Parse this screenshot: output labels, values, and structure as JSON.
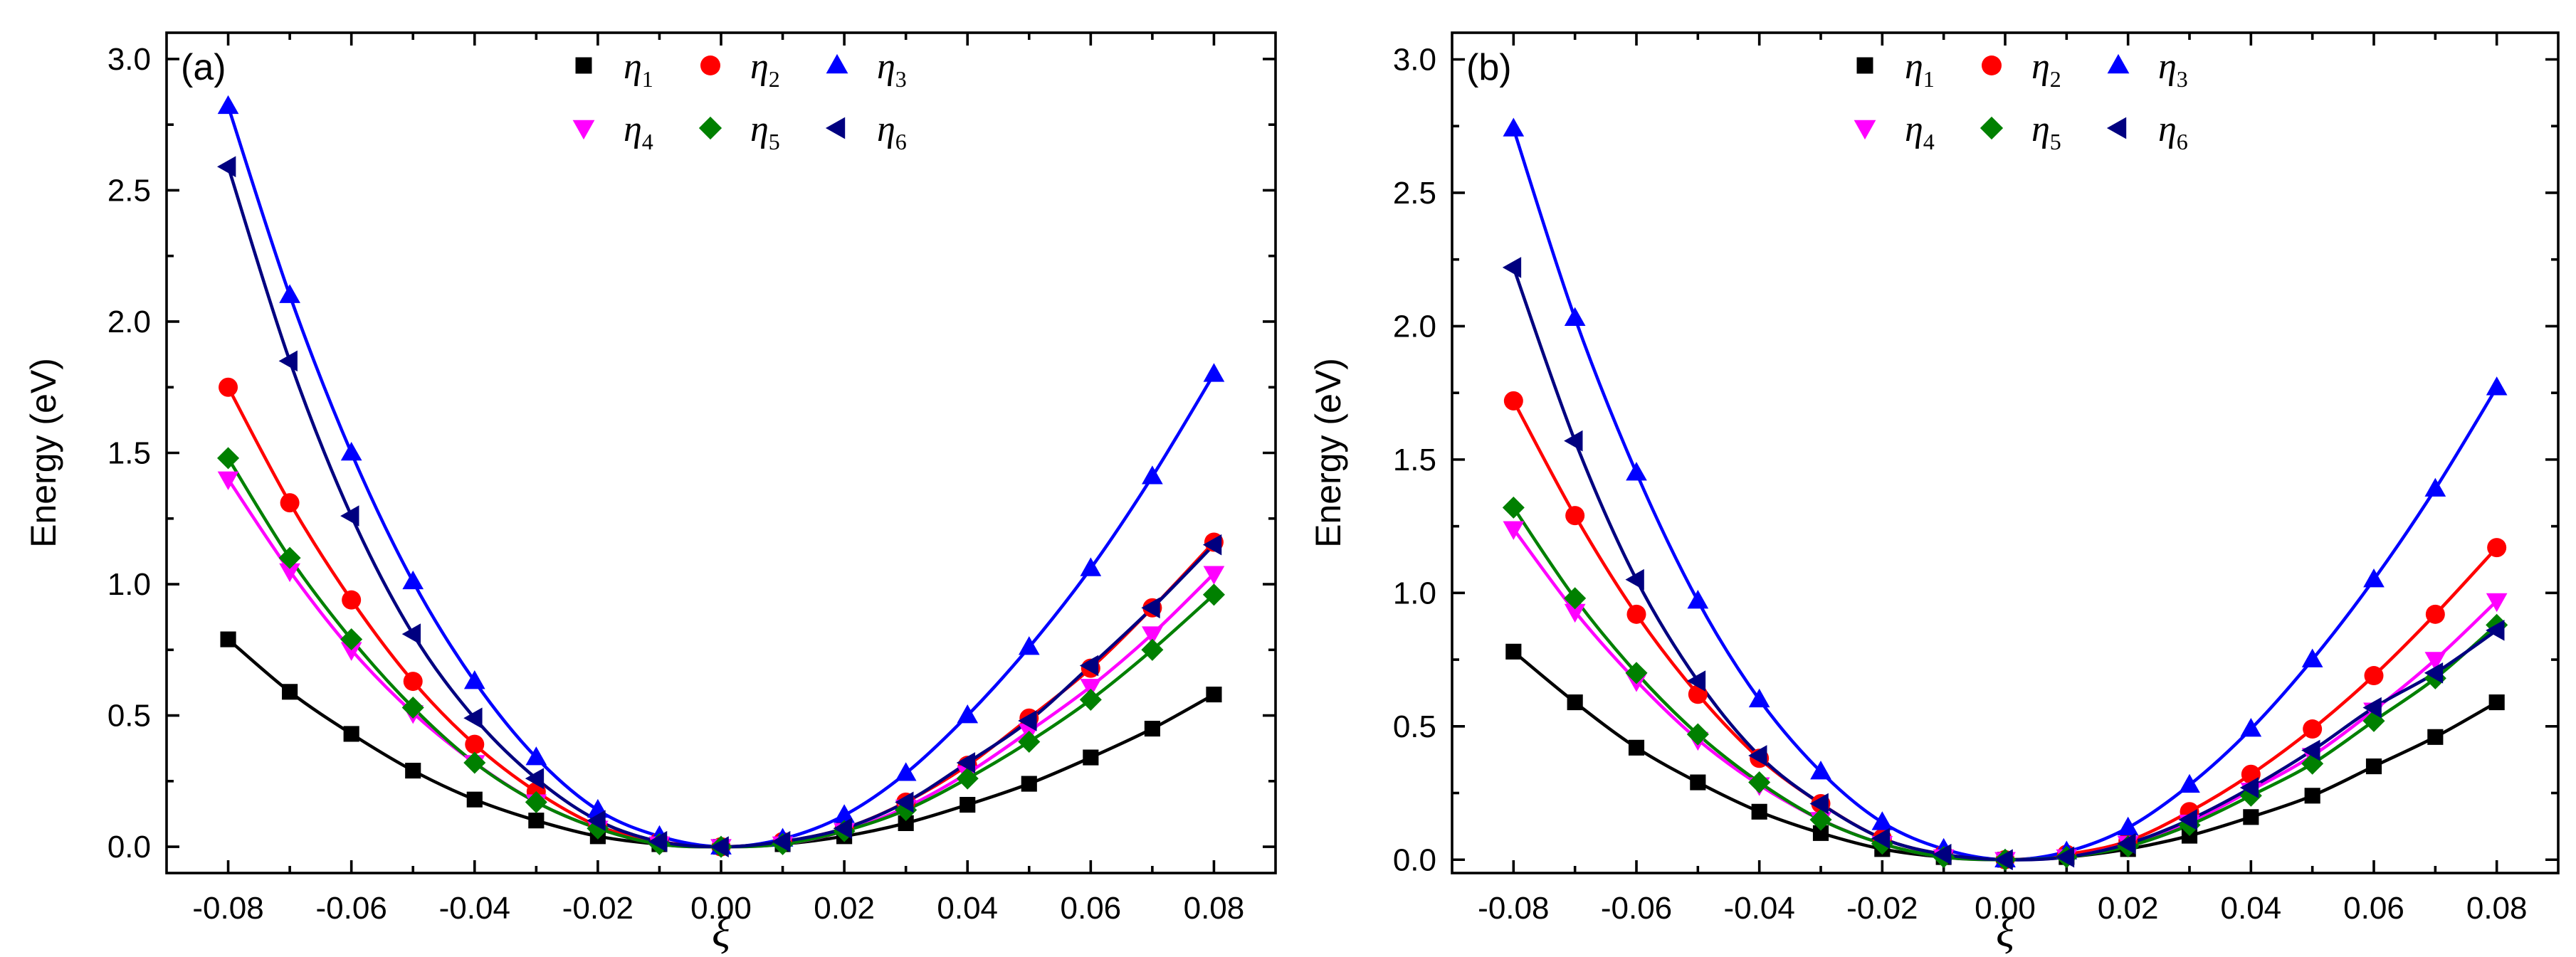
{
  "chart_data": [
    {
      "type": "line",
      "panel_label": "(a)",
      "xlabel": "ξ",
      "ylabel": "Energy (eV)",
      "xlim": [
        -0.09,
        0.09
      ],
      "ylim": [
        -0.1,
        3.1
      ],
      "xticks": [
        -0.08,
        -0.06,
        -0.04,
        -0.02,
        0.0,
        0.02,
        0.04,
        0.06,
        0.08
      ],
      "xtick_labels": [
        "-0.08",
        "-0.06",
        "-0.04",
        "-0.02",
        "0.00",
        "0.02",
        "0.04",
        "0.06",
        "0.08"
      ],
      "yticks": [
        0.0,
        0.5,
        1.0,
        1.5,
        2.0,
        2.5,
        3.0
      ],
      "ytick_labels": [
        "0.0",
        "0.5",
        "1.0",
        "1.5",
        "2.0",
        "2.5",
        "3.0"
      ],
      "grid": false,
      "legend_position": "top-center",
      "x": [
        -0.08,
        -0.07,
        -0.06,
        -0.05,
        -0.04,
        -0.03,
        -0.02,
        -0.01,
        0.0,
        0.01,
        0.02,
        0.03,
        0.04,
        0.05,
        0.06,
        0.07,
        0.08
      ],
      "series": [
        {
          "name": "η",
          "subscript": "1",
          "marker": "square",
          "color": "#000000",
          "values": [
            0.79,
            0.59,
            0.43,
            0.29,
            0.18,
            0.1,
            0.04,
            0.01,
            0.0,
            0.01,
            0.04,
            0.09,
            0.16,
            0.24,
            0.34,
            0.45,
            0.58
          ]
        },
        {
          "name": "η",
          "subscript": "2",
          "marker": "circle",
          "color": "#ff0000",
          "values": [
            1.75,
            1.31,
            0.94,
            0.63,
            0.39,
            0.21,
            0.08,
            0.02,
            0.0,
            0.02,
            0.07,
            0.17,
            0.31,
            0.49,
            0.68,
            0.91,
            1.16
          ]
        },
        {
          "name": "η",
          "subscript": "3",
          "marker": "triangle-up",
          "color": "#0000ff",
          "values": [
            2.82,
            2.1,
            1.5,
            1.01,
            0.63,
            0.34,
            0.14,
            0.04,
            0.0,
            0.03,
            0.12,
            0.28,
            0.5,
            0.76,
            1.06,
            1.41,
            1.8
          ]
        },
        {
          "name": "η",
          "subscript": "4",
          "marker": "triangle-down",
          "color": "#ff00ff",
          "values": [
            1.4,
            1.05,
            0.75,
            0.51,
            0.32,
            0.17,
            0.07,
            0.01,
            0.0,
            0.01,
            0.06,
            0.15,
            0.28,
            0.44,
            0.61,
            0.81,
            1.04
          ]
        },
        {
          "name": "η",
          "subscript": "5",
          "marker": "diamond",
          "color": "#008000",
          "values": [
            1.48,
            1.1,
            0.79,
            0.53,
            0.32,
            0.17,
            0.07,
            0.01,
            0.0,
            0.01,
            0.06,
            0.14,
            0.26,
            0.4,
            0.56,
            0.75,
            0.96
          ]
        },
        {
          "name": "η",
          "subscript": "6",
          "marker": "triangle-left",
          "color": "#000080",
          "values": [
            2.59,
            1.85,
            1.26,
            0.81,
            0.49,
            0.26,
            0.1,
            0.02,
            0.0,
            0.02,
            0.07,
            0.17,
            0.32,
            0.48,
            0.69,
            0.91,
            1.15
          ]
        }
      ]
    },
    {
      "type": "line",
      "panel_label": "(b)",
      "xlabel": "ξ",
      "ylabel": "Energy (eV)",
      "xlim": [
        -0.09,
        0.09
      ],
      "ylim": [
        -0.05,
        3.1
      ],
      "xticks": [
        -0.08,
        -0.06,
        -0.04,
        -0.02,
        0.0,
        0.02,
        0.04,
        0.06,
        0.08
      ],
      "xtick_labels": [
        "-0.08",
        "-0.06",
        "-0.04",
        "-0.02",
        "0.00",
        "0.02",
        "0.04",
        "0.06",
        "0.08"
      ],
      "yticks": [
        0.0,
        0.5,
        1.0,
        1.5,
        2.0,
        2.5,
        3.0
      ],
      "ytick_labels": [
        "0.0",
        "0.5",
        "1.0",
        "1.5",
        "2.0",
        "2.5",
        "3.0"
      ],
      "grid": false,
      "legend_position": "top-center",
      "x": [
        -0.08,
        -0.07,
        -0.06,
        -0.05,
        -0.04,
        -0.03,
        -0.02,
        -0.01,
        0.0,
        0.01,
        0.02,
        0.03,
        0.04,
        0.05,
        0.06,
        0.07,
        0.08
      ],
      "series": [
        {
          "name": "η",
          "subscript": "1",
          "marker": "square",
          "color": "#000000",
          "values": [
            0.78,
            0.59,
            0.42,
            0.29,
            0.18,
            0.1,
            0.04,
            0.01,
            0.0,
            0.01,
            0.04,
            0.09,
            0.16,
            0.24,
            0.35,
            0.46,
            0.59
          ]
        },
        {
          "name": "η",
          "subscript": "2",
          "marker": "circle",
          "color": "#ff0000",
          "values": [
            1.72,
            1.29,
            0.92,
            0.62,
            0.38,
            0.21,
            0.08,
            0.02,
            0.0,
            0.02,
            0.07,
            0.18,
            0.32,
            0.49,
            0.69,
            0.92,
            1.17
          ]
        },
        {
          "name": "η",
          "subscript": "3",
          "marker": "triangle-up",
          "color": "#0000ff",
          "values": [
            2.74,
            2.03,
            1.45,
            0.97,
            0.6,
            0.33,
            0.14,
            0.04,
            0.0,
            0.03,
            0.12,
            0.28,
            0.49,
            0.75,
            1.05,
            1.39,
            1.77
          ]
        },
        {
          "name": "η",
          "subscript": "4",
          "marker": "triangle-down",
          "color": "#ff00ff",
          "values": [
            1.24,
            0.93,
            0.67,
            0.45,
            0.28,
            0.15,
            0.06,
            0.01,
            0.0,
            0.01,
            0.06,
            0.14,
            0.26,
            0.39,
            0.56,
            0.75,
            0.97
          ]
        },
        {
          "name": "η",
          "subscript": "5",
          "marker": "diamond",
          "color": "#008000",
          "values": [
            1.32,
            0.98,
            0.7,
            0.47,
            0.29,
            0.15,
            0.06,
            0.01,
            0.0,
            0.01,
            0.05,
            0.13,
            0.24,
            0.36,
            0.52,
            0.68,
            0.88
          ]
        },
        {
          "name": "η",
          "subscript": "6",
          "marker": "triangle-left",
          "color": "#000080",
          "values": [
            2.22,
            1.57,
            1.05,
            0.67,
            0.39,
            0.21,
            0.08,
            0.02,
            0.0,
            0.01,
            0.06,
            0.15,
            0.27,
            0.41,
            0.57,
            0.7,
            0.86
          ]
        }
      ]
    }
  ]
}
